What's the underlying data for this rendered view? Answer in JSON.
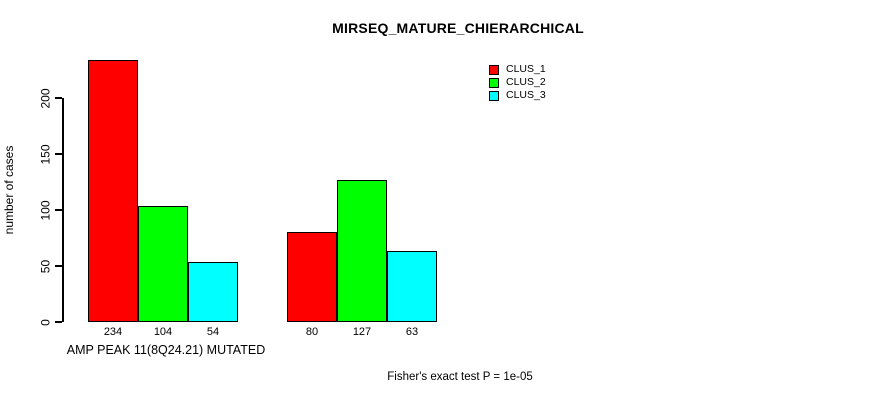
{
  "title": "MIRSEQ_MATURE_CHIERARCHICAL",
  "chart_data": {
    "type": "bar",
    "title": "MIRSEQ_MATURE_CHIERARCHICAL",
    "xlabel": "AMP PEAK 11(8Q24.21) MUTATED",
    "ylabel": "number of cases",
    "yticks": [
      0,
      50,
      100,
      150,
      200
    ],
    "ylim": [
      0,
      242
    ],
    "grid": false,
    "legend_position": "top-right-inside",
    "categories": [
      "AMP PEAK 11(8Q24.21) MUTATED",
      ""
    ],
    "series": [
      {
        "name": "CLUS_1",
        "color": "#ff0000",
        "values": [
          234,
          80
        ]
      },
      {
        "name": "CLUS_2",
        "color": "#00ff00",
        "values": [
          104,
          127
        ]
      },
      {
        "name": "CLUS_3",
        "color": "#00ffff",
        "values": [
          54,
          63
        ]
      }
    ],
    "bar_labels": [
      [
        234,
        104,
        54
      ],
      [
        80,
        127,
        63
      ]
    ],
    "annotation": "Fisher's exact test P = 1e-05"
  },
  "colors": {
    "background": "#ffffff",
    "axis": "#000000",
    "text": "#000000",
    "clus_1": "#ff0000",
    "clus_2": "#00ff00",
    "clus_3": "#00ffff"
  }
}
